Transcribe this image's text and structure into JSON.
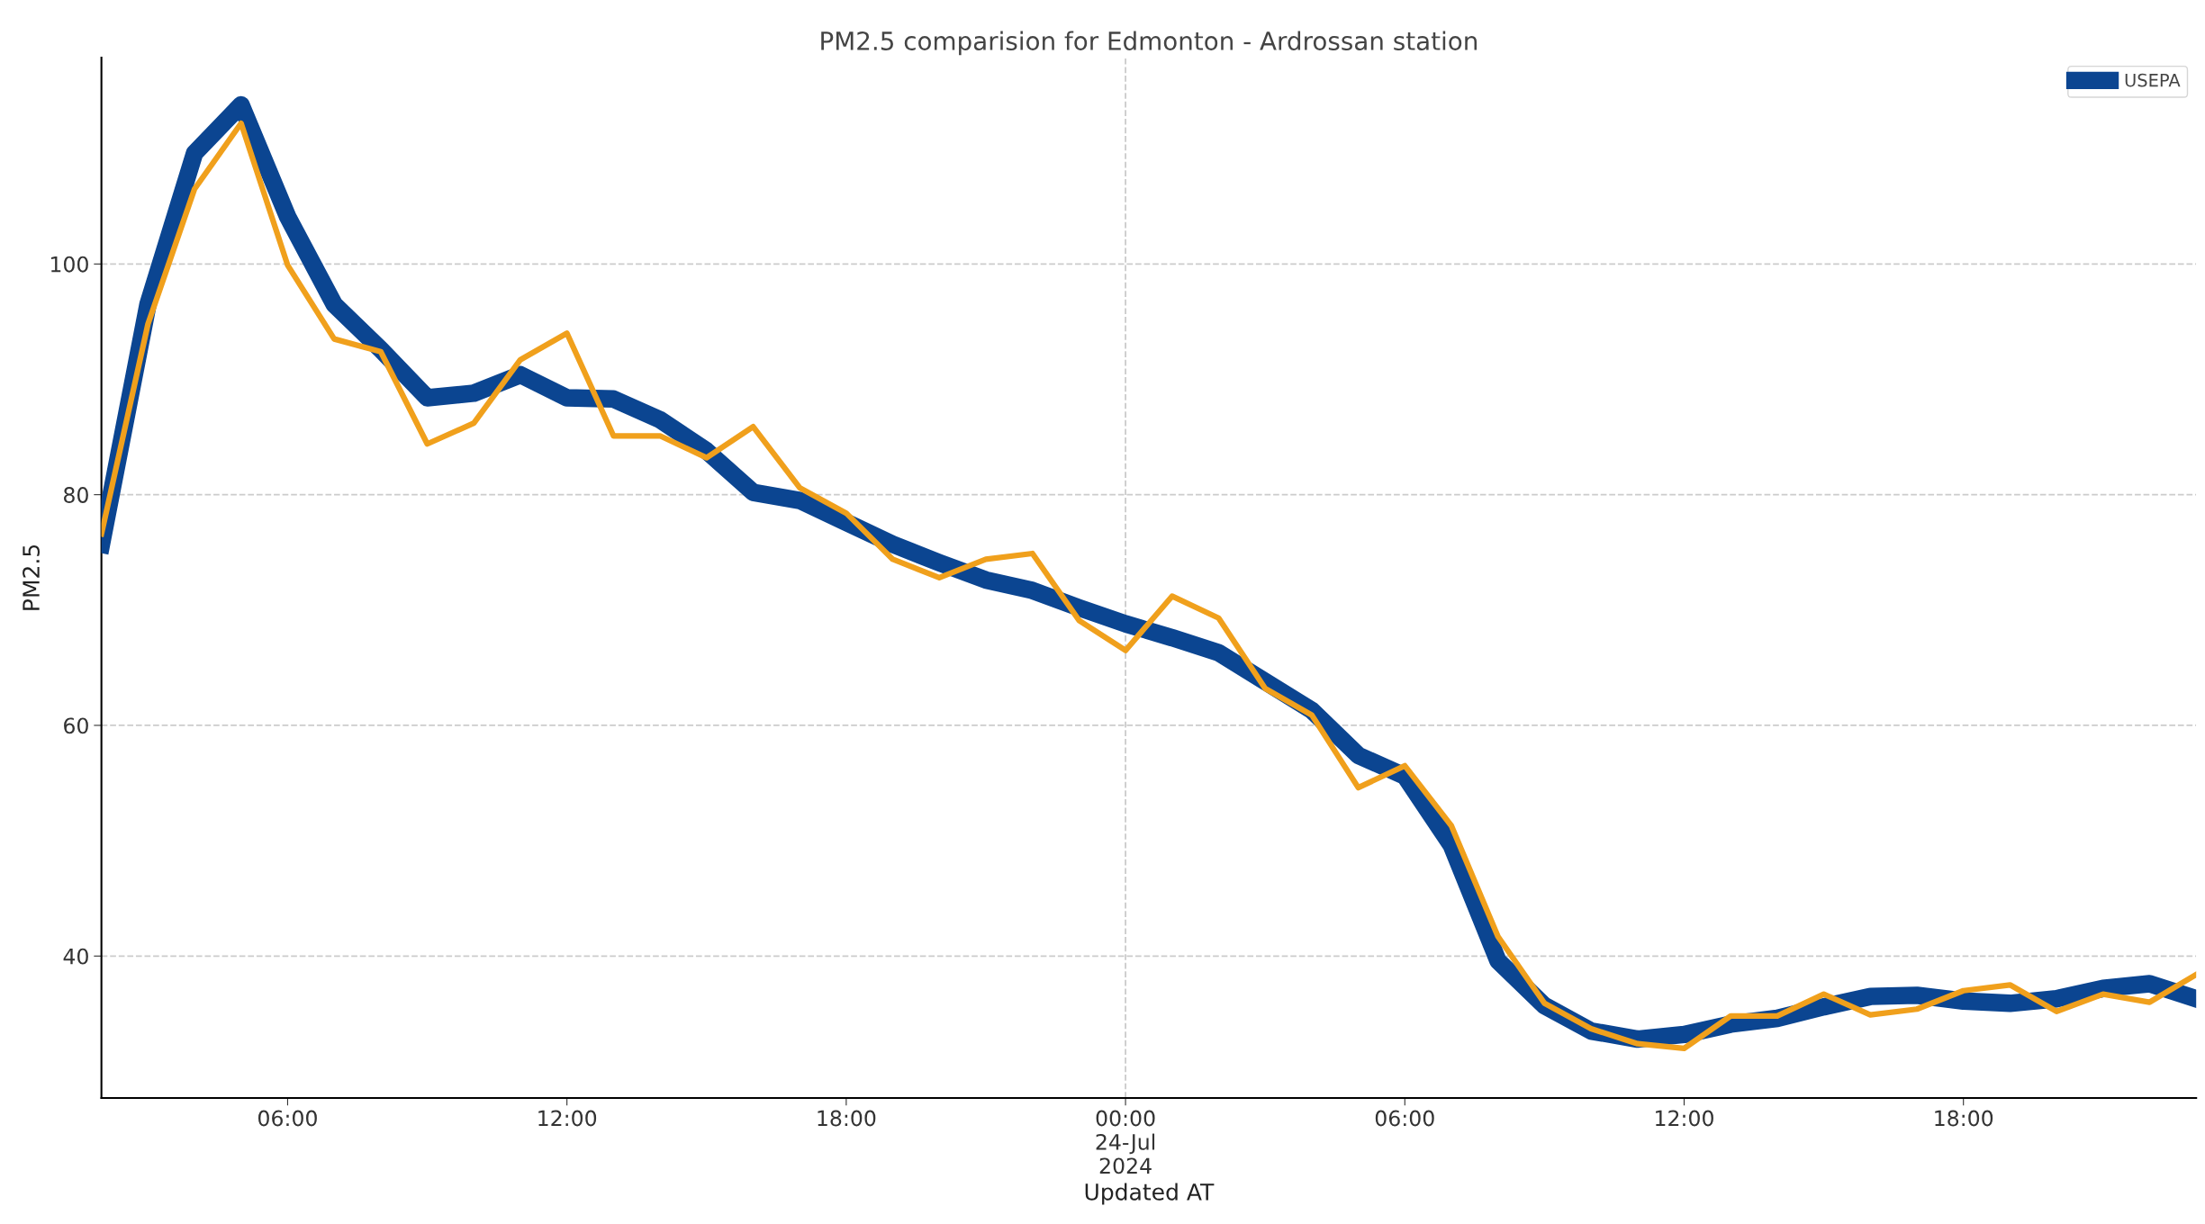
{
  "chart_data": {
    "type": "line",
    "title": "PM2.5 comparision for Edmonton - Ardrossan station",
    "xlabel": "Updated AT",
    "ylabel": "PM2.5",
    "x": [
      "2024-07-23T02:00",
      "2024-07-23T03:00",
      "2024-07-23T04:00",
      "2024-07-23T05:00",
      "2024-07-23T06:00",
      "2024-07-23T07:00",
      "2024-07-23T08:00",
      "2024-07-23T09:00",
      "2024-07-23T10:00",
      "2024-07-23T11:00",
      "2024-07-23T12:00",
      "2024-07-23T13:00",
      "2024-07-23T14:00",
      "2024-07-23T15:00",
      "2024-07-23T16:00",
      "2024-07-23T17:00",
      "2024-07-23T18:00",
      "2024-07-23T19:00",
      "2024-07-23T20:00",
      "2024-07-23T21:00",
      "2024-07-23T22:00",
      "2024-07-23T23:00",
      "2024-07-24T00:00",
      "2024-07-24T01:00",
      "2024-07-24T02:00",
      "2024-07-24T03:00",
      "2024-07-24T04:00",
      "2024-07-24T05:00",
      "2024-07-24T06:00",
      "2024-07-24T07:00",
      "2024-07-24T08:00",
      "2024-07-24T09:00",
      "2024-07-24T10:00",
      "2024-07-24T11:00",
      "2024-07-24T12:00",
      "2024-07-24T13:00",
      "2024-07-24T14:00",
      "2024-07-24T15:00",
      "2024-07-24T16:00",
      "2024-07-24T17:00",
      "2024-07-24T18:00",
      "2024-07-24T19:00",
      "2024-07-24T20:00",
      "2024-07-24T21:00",
      "2024-07-24T22:00",
      "2024-07-24T23:00"
    ],
    "series": [
      {
        "name": "USEPA",
        "color": "#0b4591",
        "values": [
          75.7,
          96.5,
          109.6,
          113.8,
          104.1,
          96.5,
          92.6,
          88.4,
          88.8,
          90.4,
          88.4,
          88.3,
          86.5,
          83.8,
          80.2,
          79.5,
          77.6,
          75.7,
          74.1,
          72.6,
          71.7,
          70.2,
          68.8,
          67.6,
          66.3,
          63.8,
          61.3,
          57.4,
          55.6,
          49.6,
          39.6,
          35.7,
          33.5,
          32.8,
          33.2,
          34.1,
          34.6,
          35.6,
          36.5,
          36.6,
          36.1,
          35.9,
          36.3,
          37.2,
          37.6,
          36.3
        ]
      },
      {
        "color": "#f0a01c",
        "values": [
          76.6,
          94.8,
          106.5,
          112.2,
          99.9,
          93.5,
          92.4,
          84.4,
          86.2,
          91.7,
          94.0,
          85.1,
          85.1,
          83.2,
          85.9,
          80.6,
          78.4,
          74.4,
          72.8,
          74.4,
          74.9,
          69.1,
          66.5,
          71.2,
          69.3,
          63.2,
          60.9,
          54.6,
          56.5,
          51.3,
          41.7,
          35.9,
          33.7,
          32.4,
          32.0,
          34.8,
          34.8,
          36.7,
          34.9,
          35.4,
          37.0,
          37.5,
          35.2,
          36.7,
          36.0,
          38.4
        ]
      }
    ],
    "xlim": [
      "2024-07-23T02:00",
      "2024-07-24T23:00"
    ],
    "xticks": [
      {
        "value": "2024-07-23T06:00",
        "label": "06:00"
      },
      {
        "value": "2024-07-23T12:00",
        "label": "12:00"
      },
      {
        "value": "2024-07-23T18:00",
        "label": "18:00"
      },
      {
        "value": "2024-07-24T00:00",
        "label": "00:00\n24-Jul\n2024"
      },
      {
        "value": "2024-07-24T06:00",
        "label": "06:00"
      },
      {
        "value": "2024-07-24T12:00",
        "label": "12:00"
      },
      {
        "value": "2024-07-24T18:00",
        "label": "18:00"
      }
    ],
    "ylim": [
      27.7,
      117.9
    ],
    "yticks": [
      40,
      60,
      80,
      100
    ],
    "grid": "y",
    "legend": "top right",
    "ref_lines": [
      {
        "axis": "x",
        "value": "2024-07-24T00:00",
        "color": "#cccccc",
        "line_style": "dashed"
      }
    ]
  }
}
